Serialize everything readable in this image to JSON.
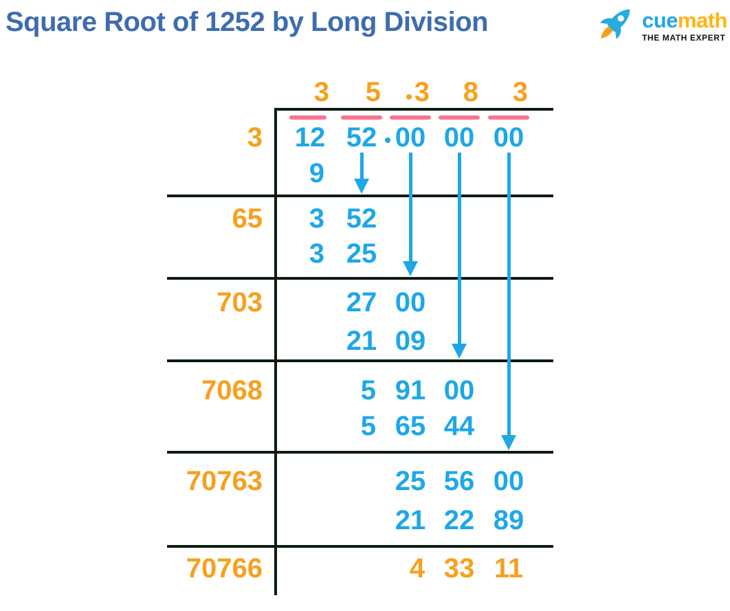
{
  "header": {
    "title": "Square Root of 1252 by Long Division",
    "logo": {
      "cue": "cue",
      "math": "math",
      "tagline": "THE MATH EXPERT"
    }
  },
  "colors": {
    "number_blue": "#1EA7E8",
    "number_orange": "#F7A01E",
    "overline_pink": "#F8758F",
    "title_blue": "#3E6CAE",
    "line_black": "#0D1B10",
    "logo_math_orange": "#FDB515"
  },
  "division": {
    "result_value": "35.383",
    "radicand": "1252",
    "quotient": {
      "digits": [
        "3",
        "5",
        "3",
        "8",
        "3"
      ],
      "decimal_point_before_digit_index": 2
    },
    "dividend": {
      "pairs": [
        "12",
        "52",
        "00",
        "00",
        "00"
      ],
      "decimal_point_before_pair_index": 2
    },
    "divisors": [
      "3",
      "65",
      "703",
      "7068",
      "70763",
      "70766"
    ],
    "work_rows": [
      {
        "color": "blue",
        "cells": [
          {
            "col": 0,
            "text": "9"
          }
        ]
      },
      {
        "color": "blue",
        "cells": [
          {
            "col": 0,
            "text": "3"
          },
          {
            "col": 1,
            "text": "52"
          }
        ]
      },
      {
        "color": "blue",
        "cells": [
          {
            "col": 0,
            "text": "3"
          },
          {
            "col": 1,
            "text": "25"
          }
        ]
      },
      {
        "color": "blue",
        "cells": [
          {
            "col": 1,
            "text": "27"
          },
          {
            "col": 2,
            "text": "00"
          }
        ]
      },
      {
        "color": "blue",
        "cells": [
          {
            "col": 1,
            "text": "21"
          },
          {
            "col": 2,
            "text": "09"
          }
        ]
      },
      {
        "color": "blue",
        "cells": [
          {
            "col": 1,
            "text": "5"
          },
          {
            "col": 2,
            "text": "91"
          },
          {
            "col": 3,
            "text": "00"
          }
        ]
      },
      {
        "color": "blue",
        "cells": [
          {
            "col": 1,
            "text": "5"
          },
          {
            "col": 2,
            "text": "65"
          },
          {
            "col": 3,
            "text": "44"
          }
        ]
      },
      {
        "color": "blue",
        "cells": [
          {
            "col": 2,
            "text": "25"
          },
          {
            "col": 3,
            "text": "56"
          },
          {
            "col": 4,
            "text": "00"
          }
        ]
      },
      {
        "color": "blue",
        "cells": [
          {
            "col": 2,
            "text": "21"
          },
          {
            "col": 3,
            "text": "22"
          },
          {
            "col": 4,
            "text": "89"
          }
        ]
      },
      {
        "color": "orange",
        "cells": [
          {
            "col": 2,
            "text": "4"
          },
          {
            "col": 3,
            "text": "33"
          },
          {
            "col": 4,
            "text": "11"
          }
        ]
      }
    ],
    "bring_down_arrows": [
      {
        "from_pair": 1,
        "to_section_line": 0
      },
      {
        "from_pair": 2,
        "to_section_line": 1
      },
      {
        "from_pair": 3,
        "to_section_line": 2
      },
      {
        "from_pair": 4,
        "to_section_line": 3
      }
    ]
  }
}
